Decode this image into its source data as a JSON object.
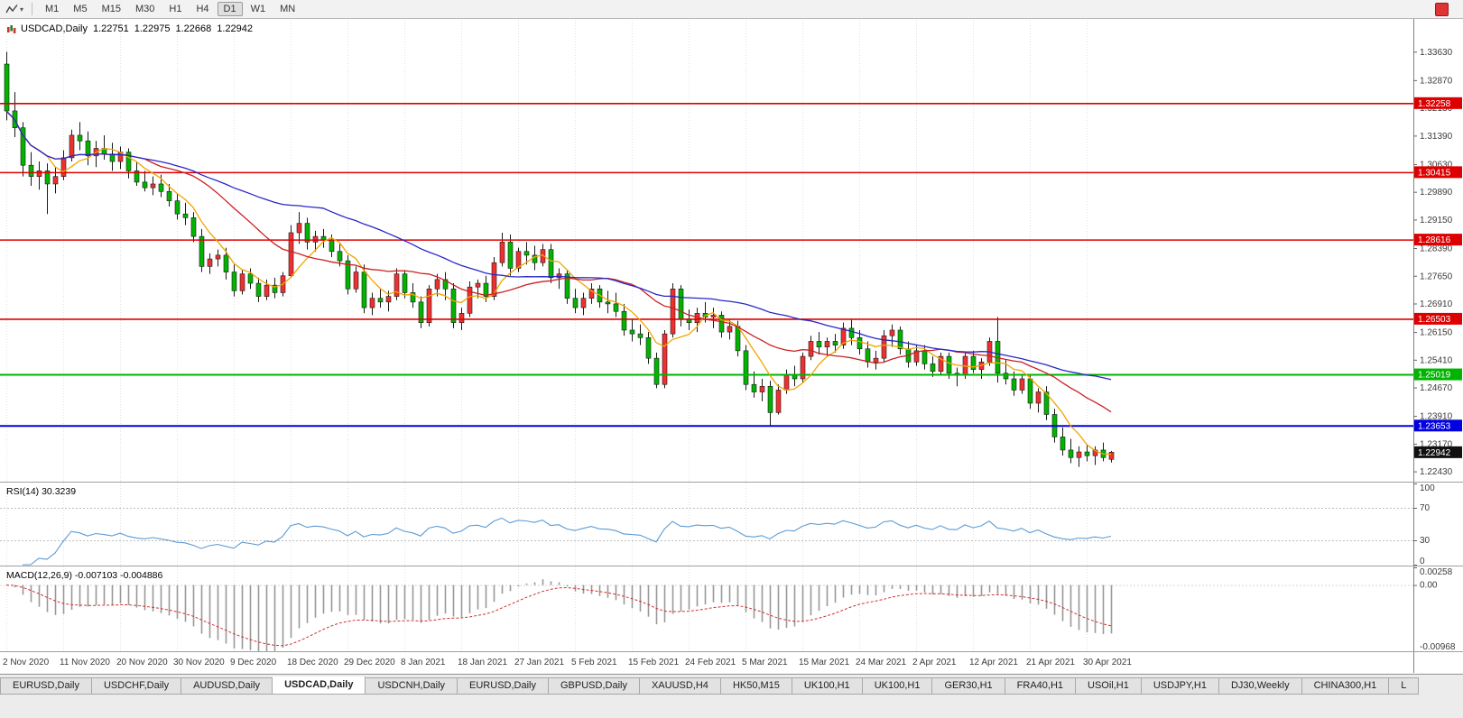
{
  "toolbar": {
    "timeframes": [
      "M1",
      "M5",
      "M15",
      "M30",
      "H1",
      "H4",
      "D1",
      "W1",
      "MN"
    ],
    "active_timeframe": "D1"
  },
  "chart": {
    "symbol_title": "USDCAD,Daily",
    "open": "1.22751",
    "high": "1.22975",
    "low": "1.22668",
    "close": "1.22942"
  },
  "tabs": {
    "active_index": 3,
    "items": [
      {
        "label": "EURUSD,Daily"
      },
      {
        "label": "USDCHF,Daily"
      },
      {
        "label": "AUDUSD,Daily"
      },
      {
        "label": "USDCAD,Daily"
      },
      {
        "label": "USDCNH,Daily"
      },
      {
        "label": "EURUSD,Daily"
      },
      {
        "label": "GBPUSD,Daily"
      },
      {
        "label": "XAUUSD,H4"
      },
      {
        "label": "HK50,M15"
      },
      {
        "label": "UK100,H1"
      },
      {
        "label": "UK100,H1"
      },
      {
        "label": "GER30,H1"
      },
      {
        "label": "FRA40,H1"
      },
      {
        "label": "USOil,H1"
      },
      {
        "label": "USDJPY,H1"
      },
      {
        "label": "DJ30,Weekly"
      },
      {
        "label": "CHINA300,H1"
      },
      {
        "label": "L"
      }
    ]
  },
  "chart_data": {
    "type": "candlestick",
    "symbol": "USDCAD",
    "timeframe": "Daily",
    "current_bar": {
      "open": 1.22751,
      "high": 1.22975,
      "low": 1.22668,
      "close": 1.22942
    },
    "price_range": [
      1.2218,
      1.3448
    ],
    "y_ticks": [
      "1.33630",
      "1.32870",
      "1.32130",
      "1.31390",
      "1.30630",
      "1.29890",
      "1.29150",
      "1.28390",
      "1.27650",
      "1.26910",
      "1.26150",
      "1.25410",
      "1.24670",
      "1.23910",
      "1.23170",
      "1.22430"
    ],
    "x_labels": [
      "2 Nov 2020",
      "11 Nov 2020",
      "20 Nov 2020",
      "30 Nov 2020",
      "9 Dec 2020",
      "18 Dec 2020",
      "29 Dec 2020",
      "8 Jan 2021",
      "18 Jan 2021",
      "27 Jan 2021",
      "5 Feb 2021",
      "15 Feb 2021",
      "24 Feb 2021",
      "5 Mar 2021",
      "15 Mar 2021",
      "24 Mar 2021",
      "2 Apr 2021",
      "12 Apr 2021",
      "21 Apr 2021",
      "30 Apr 2021"
    ],
    "x_label_step": 7,
    "horizontal_lines": [
      {
        "label": "1.32258",
        "price": 1.32258,
        "color": "#dd0000"
      },
      {
        "label": "1.30415",
        "price": 1.30415,
        "color": "#dd0000"
      },
      {
        "label": "1.28616",
        "price": 1.28616,
        "color": "#dd0000"
      },
      {
        "label": "1.26503",
        "price": 1.26503,
        "color": "#dd0000"
      },
      {
        "label": "1.25019",
        "price": 1.25019,
        "color": "#00b400"
      },
      {
        "label": "1.23653",
        "price": 1.23653,
        "color": "#0000e0"
      }
    ],
    "current_price_tag": {
      "label": "1.22942",
      "price": 1.22942,
      "color": "#111111"
    },
    "moving_averages": [
      {
        "name": "ma-fast",
        "period": 6,
        "color": "#f0a500"
      },
      {
        "name": "ma-mid",
        "period": 18,
        "color": "#cc2020"
      },
      {
        "name": "ma-slow",
        "period": 40,
        "color": "#2828c8"
      }
    ],
    "colors": {
      "up_candle": "#f03030",
      "down_candle": "#00b400",
      "wick": "#1a1a1a",
      "background": "#ffffff"
    },
    "indicators": {
      "rsi": {
        "label": "RSI(14) 30.3239",
        "period": 14,
        "value": 30.3239,
        "levels": [
          70,
          30
        ],
        "axis_labels": [
          {
            "text": "100",
            "value": 100
          },
          {
            "text": "70",
            "value": 70
          },
          {
            "text": "30",
            "value": 30
          },
          {
            "text": "0",
            "value": 0
          }
        ],
        "color": "#5b9bd5"
      },
      "macd": {
        "label": "MACD(12,26,9) -0.007103 -0.004886",
        "fast": 12,
        "slow": 26,
        "signal": 9,
        "values": [
          -0.007103,
          -0.004886
        ],
        "range": [
          -0.00968,
          0.00258
        ],
        "axis_labels": [
          {
            "text": "0.00258",
            "value": 0.00258
          },
          {
            "text": "0.00",
            "value": 0
          },
          {
            "text": "-0.00968",
            "value": -0.00968
          }
        ],
        "histogram_color": "#999999",
        "signal_color": "#d03030"
      }
    },
    "candles": [
      [
        1.333,
        1.3363,
        1.318,
        1.3205
      ],
      [
        1.3205,
        1.3255,
        1.3135,
        1.316
      ],
      [
        1.316,
        1.3175,
        1.303,
        1.306
      ],
      [
        1.306,
        1.3095,
        1.3005,
        1.303
      ],
      [
        1.303,
        1.307,
        1.2995,
        1.3045
      ],
      [
        1.3045,
        1.3065,
        1.293,
        1.301
      ],
      [
        1.301,
        1.3055,
        1.2985,
        1.303
      ],
      [
        1.303,
        1.31,
        1.302,
        1.308
      ],
      [
        1.308,
        1.3155,
        1.307,
        1.314
      ],
      [
        1.314,
        1.3175,
        1.31,
        1.3125
      ],
      [
        1.3125,
        1.315,
        1.306,
        1.3085
      ],
      [
        1.3085,
        1.3125,
        1.3055,
        1.3105
      ],
      [
        1.3105,
        1.314,
        1.3075,
        1.309
      ],
      [
        1.309,
        1.312,
        1.3045,
        1.307
      ],
      [
        1.307,
        1.311,
        1.305,
        1.3095
      ],
      [
        1.3095,
        1.3105,
        1.3025,
        1.3045
      ],
      [
        1.3045,
        1.307,
        1.3005,
        1.3015
      ],
      [
        1.3015,
        1.3045,
        1.299,
        1.3
      ],
      [
        1.3,
        1.303,
        1.298,
        1.301
      ],
      [
        1.301,
        1.3035,
        1.2975,
        1.299
      ],
      [
        1.299,
        1.301,
        1.295,
        1.2965
      ],
      [
        1.2965,
        1.2985,
        1.2915,
        1.293
      ],
      [
        1.293,
        1.296,
        1.29,
        1.292
      ],
      [
        1.292,
        1.2935,
        1.2855,
        1.287
      ],
      [
        1.287,
        1.289,
        1.2775,
        1.279
      ],
      [
        1.279,
        1.2825,
        1.277,
        1.281
      ],
      [
        1.281,
        1.2835,
        1.279,
        1.282
      ],
      [
        1.282,
        1.284,
        1.2755,
        1.2775
      ],
      [
        1.2775,
        1.2795,
        1.271,
        1.2725
      ],
      [
        1.2725,
        1.278,
        1.2715,
        1.277
      ],
      [
        1.277,
        1.2785,
        1.273,
        1.2745
      ],
      [
        1.2745,
        1.276,
        1.2695,
        1.271
      ],
      [
        1.271,
        1.2755,
        1.27,
        1.274
      ],
      [
        1.274,
        1.276,
        1.2705,
        1.272
      ],
      [
        1.272,
        1.2775,
        1.271,
        1.2765
      ],
      [
        1.2765,
        1.29,
        1.276,
        1.288
      ],
      [
        1.288,
        1.2935,
        1.285,
        1.2905
      ],
      [
        1.2905,
        1.292,
        1.2835,
        1.2855
      ],
      [
        1.2855,
        1.2885,
        1.283,
        1.287
      ],
      [
        1.287,
        1.289,
        1.284,
        1.286
      ],
      [
        1.286,
        1.2875,
        1.2815,
        1.283
      ],
      [
        1.283,
        1.285,
        1.279,
        1.2805
      ],
      [
        1.2805,
        1.282,
        1.2715,
        1.273
      ],
      [
        1.273,
        1.279,
        1.272,
        1.2775
      ],
      [
        1.2775,
        1.2795,
        1.2665,
        1.268
      ],
      [
        1.268,
        1.272,
        1.266,
        1.2705
      ],
      [
        1.2705,
        1.273,
        1.268,
        1.2695
      ],
      [
        1.2695,
        1.2725,
        1.267,
        1.271
      ],
      [
        1.271,
        1.2785,
        1.27,
        1.277
      ],
      [
        1.277,
        1.278,
        1.2705,
        1.272
      ],
      [
        1.272,
        1.2745,
        1.268,
        1.2695
      ],
      [
        1.2695,
        1.271,
        1.2625,
        1.264
      ],
      [
        1.264,
        1.274,
        1.263,
        1.273
      ],
      [
        1.273,
        1.277,
        1.271,
        1.2755
      ],
      [
        1.2755,
        1.2775,
        1.27,
        1.273
      ],
      [
        1.273,
        1.2745,
        1.2625,
        1.264
      ],
      [
        1.264,
        1.268,
        1.262,
        1.2665
      ],
      [
        1.2665,
        1.275,
        1.2655,
        1.2735
      ],
      [
        1.2735,
        1.2755,
        1.2705,
        1.2745
      ],
      [
        1.2745,
        1.2765,
        1.2695,
        1.271
      ],
      [
        1.271,
        1.2815,
        1.27,
        1.28
      ],
      [
        1.28,
        1.288,
        1.279,
        1.2855
      ],
      [
        1.2855,
        1.2875,
        1.2765,
        1.2785
      ],
      [
        1.2785,
        1.284,
        1.2775,
        1.283
      ],
      [
        1.283,
        1.2855,
        1.2795,
        1.282
      ],
      [
        1.282,
        1.2845,
        1.278,
        1.28
      ],
      [
        1.28,
        1.285,
        1.279,
        1.2835
      ],
      [
        1.2835,
        1.285,
        1.2745,
        1.276
      ],
      [
        1.276,
        1.2785,
        1.273,
        1.277
      ],
      [
        1.277,
        1.278,
        1.269,
        1.2705
      ],
      [
        1.2705,
        1.273,
        1.2665,
        1.268
      ],
      [
        1.268,
        1.272,
        1.266,
        1.2705
      ],
      [
        1.2705,
        1.2745,
        1.269,
        1.273
      ],
      [
        1.273,
        1.274,
        1.268,
        1.2695
      ],
      [
        1.2695,
        1.2725,
        1.2665,
        1.269
      ],
      [
        1.269,
        1.272,
        1.2655,
        1.267
      ],
      [
        1.267,
        1.269,
        1.2605,
        1.262
      ],
      [
        1.262,
        1.265,
        1.259,
        1.261
      ],
      [
        1.261,
        1.2635,
        1.258,
        1.26
      ],
      [
        1.26,
        1.2615,
        1.253,
        1.2545
      ],
      [
        1.2545,
        1.256,
        1.2465,
        1.2475
      ],
      [
        1.2475,
        1.262,
        1.2465,
        1.261
      ],
      [
        1.261,
        1.2745,
        1.26,
        1.273
      ],
      [
        1.273,
        1.274,
        1.263,
        1.265
      ],
      [
        1.265,
        1.2675,
        1.262,
        1.264
      ],
      [
        1.264,
        1.268,
        1.2615,
        1.2665
      ],
      [
        1.2665,
        1.2695,
        1.264,
        1.2655
      ],
      [
        1.2655,
        1.268,
        1.2625,
        1.266
      ],
      [
        1.266,
        1.267,
        1.26,
        1.2615
      ],
      [
        1.2615,
        1.265,
        1.2595,
        1.263
      ],
      [
        1.263,
        1.2645,
        1.255,
        1.2565
      ],
      [
        1.2565,
        1.258,
        1.246,
        1.2475
      ],
      [
        1.2475,
        1.251,
        1.244,
        1.2455
      ],
      [
        1.2455,
        1.249,
        1.243,
        1.247
      ],
      [
        1.247,
        1.2485,
        1.2365,
        1.24
      ],
      [
        1.24,
        1.2475,
        1.2395,
        1.246
      ],
      [
        1.246,
        1.2515,
        1.245,
        1.25
      ],
      [
        1.25,
        1.2525,
        1.247,
        1.249
      ],
      [
        1.249,
        1.256,
        1.248,
        1.255
      ],
      [
        1.255,
        1.2605,
        1.254,
        1.259
      ],
      [
        1.259,
        1.2615,
        1.2555,
        1.2575
      ],
      [
        1.2575,
        1.26,
        1.255,
        1.259
      ],
      [
        1.259,
        1.261,
        1.256,
        1.258
      ],
      [
        1.258,
        1.264,
        1.257,
        1.2625
      ],
      [
        1.2625,
        1.265,
        1.258,
        1.26
      ],
      [
        1.26,
        1.262,
        1.2555,
        1.257
      ],
      [
        1.257,
        1.259,
        1.252,
        1.2535
      ],
      [
        1.2535,
        1.2565,
        1.2515,
        1.2545
      ],
      [
        1.2545,
        1.262,
        1.2535,
        1.2605
      ],
      [
        1.2605,
        1.2635,
        1.2575,
        1.262
      ],
      [
        1.262,
        1.263,
        1.2555,
        1.257
      ],
      [
        1.257,
        1.259,
        1.252,
        1.2535
      ],
      [
        1.2535,
        1.258,
        1.2525,
        1.2565
      ],
      [
        1.2565,
        1.258,
        1.2515,
        1.253
      ],
      [
        1.253,
        1.255,
        1.2495,
        1.251
      ],
      [
        1.251,
        1.256,
        1.25,
        1.255
      ],
      [
        1.255,
        1.256,
        1.249,
        1.2505
      ],
      [
        1.2505,
        1.252,
        1.247,
        1.25
      ],
      [
        1.25,
        1.256,
        1.249,
        1.255
      ],
      [
        1.255,
        1.2565,
        1.2505,
        1.2515
      ],
      [
        1.2515,
        1.2545,
        1.249,
        1.2535
      ],
      [
        1.2535,
        1.26,
        1.2525,
        1.259
      ],
      [
        1.259,
        1.2655,
        1.248,
        1.2505
      ],
      [
        1.2505,
        1.254,
        1.2475,
        1.249
      ],
      [
        1.249,
        1.251,
        1.2445,
        1.246
      ],
      [
        1.246,
        1.25,
        1.245,
        1.249
      ],
      [
        1.249,
        1.25,
        1.241,
        1.2425
      ],
      [
        1.2425,
        1.2465,
        1.24,
        1.2455
      ],
      [
        1.2455,
        1.247,
        1.238,
        1.2395
      ],
      [
        1.2395,
        1.241,
        1.232,
        1.2335
      ],
      [
        1.2335,
        1.236,
        1.2285,
        1.23
      ],
      [
        1.23,
        1.233,
        1.2265,
        1.228
      ],
      [
        1.228,
        1.231,
        1.2255,
        1.2295
      ],
      [
        1.2295,
        1.2315,
        1.227,
        1.2285
      ],
      [
        1.2285,
        1.231,
        1.226,
        1.23
      ],
      [
        1.23,
        1.232,
        1.227,
        1.228
      ],
      [
        1.22751,
        1.22975,
        1.22668,
        1.22942
      ]
    ]
  }
}
